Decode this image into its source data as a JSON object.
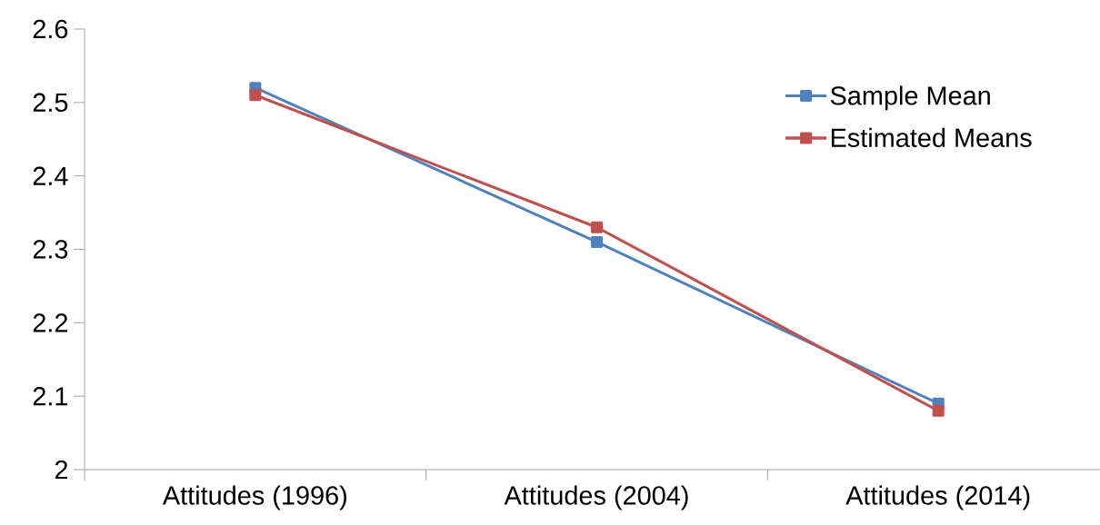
{
  "chart_data": {
    "type": "line",
    "categories": [
      "Attitudes (1996)",
      "Attitudes (2004)",
      "Attitudes (2014)"
    ],
    "series": [
      {
        "name": "Sample Mean",
        "color": "#4f81bd",
        "values": [
          2.52,
          2.31,
          2.09
        ]
      },
      {
        "name": "Estimated Means",
        "color": "#c0504d",
        "values": [
          2.51,
          2.33,
          2.08
        ]
      }
    ],
    "ylim": [
      2,
      2.6
    ],
    "yticks": [
      2,
      2.1,
      2.2,
      2.3,
      2.4,
      2.5,
      2.6
    ],
    "grid": false,
    "legend": "top right",
    "marker": "square",
    "line_style": "solid"
  }
}
